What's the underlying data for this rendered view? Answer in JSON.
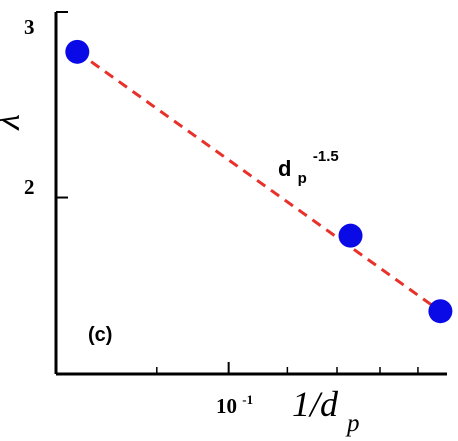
{
  "chart_data": {
    "type": "scatter",
    "xlabel": "1/d",
    "xlabel_subscript": "p",
    "ylabel": "λ",
    "x_scale": "log",
    "y_scale": "log",
    "xlim": [
      0.0585,
      0.197
    ],
    "ylim": [
      1.36,
      3.0
    ],
    "x_ticks": [
      0.1
    ],
    "x_tick_labels": [
      {
        "base": "10",
        "exp": "-1"
      }
    ],
    "x_minor_ticks": [
      0.08,
      0.12,
      0.14,
      0.16,
      0.18
    ],
    "y_ticks": [
      2,
      3
    ],
    "y_tick_labels": [
      "2",
      "3"
    ],
    "grid": false,
    "series": [
      {
        "points": [
          {
            "x": 0.0625,
            "y": 2.75
          },
          {
            "x": 0.146,
            "y": 1.84
          },
          {
            "x": 0.193,
            "y": 1.56
          }
        ],
        "marker": "circle",
        "color": "#0a0ae6"
      }
    ],
    "fit_line": {
      "from": {
        "x": 0.0625,
        "y": 2.75
      },
      "to": {
        "x": 0.193,
        "y": 1.56
      },
      "color": "#e8312b",
      "style": "dashed"
    },
    "annotations": {
      "fit_label_base": "d",
      "fit_label_sub": "p",
      "fit_label_exp": "-1.5",
      "fit_label_anchor": {
        "x": 0.129,
        "y": 2.22
      },
      "panel_label": "(c)",
      "panel_label_anchor": {
        "x": 0.063,
        "y": 1.43
      }
    }
  }
}
